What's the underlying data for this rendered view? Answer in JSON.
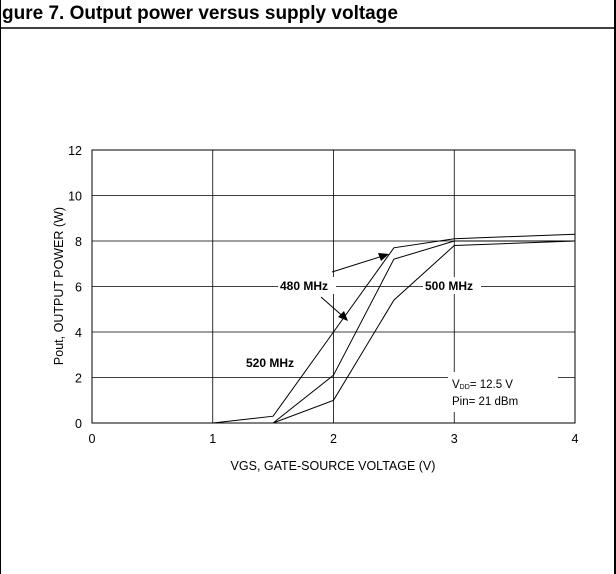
{
  "header": {
    "text": "gure 7. Output power versus supply voltage"
  },
  "chart_data": {
    "type": "line",
    "title": "",
    "xlabel": "VGS, GATE-SOURCE VOLTAGE (V)",
    "ylabel": "Pout, OUTPUT POWER (W)",
    "xlim": [
      0,
      4
    ],
    "ylim": [
      0,
      12
    ],
    "x_ticks": [
      "0",
      "1",
      "2",
      "3",
      "4"
    ],
    "y_ticks": [
      "0",
      "2",
      "4",
      "6",
      "8",
      "10",
      "12"
    ],
    "grid": true,
    "series": [
      {
        "name": "520 MHz",
        "x": [
          1,
          1.5,
          2,
          2.5,
          3,
          4
        ],
        "y": [
          0,
          0.3,
          4.0,
          7.7,
          8.1,
          8.3
        ]
      },
      {
        "name": "480 MHz",
        "x": [
          1.5,
          2,
          2.5,
          3,
          4
        ],
        "y": [
          0,
          2.1,
          7.2,
          8.0,
          8.0
        ]
      },
      {
        "name": "500 MHz",
        "x": [
          1.5,
          2,
          2.5,
          3,
          4
        ],
        "y": [
          0,
          1.0,
          5.4,
          7.8,
          8.0
        ]
      }
    ],
    "annotations": {
      "vdd_prefix": "V",
      "vdd_sub": "DD",
      "vdd_value": "= 12.5 V",
      "pin": "Pin= 21 dBm"
    }
  }
}
